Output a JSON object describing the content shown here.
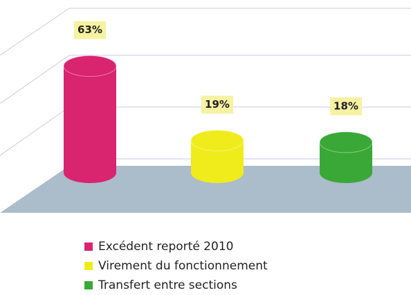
{
  "chart_data": {
    "type": "bar",
    "categories": [
      "Excédent reporté 2010",
      "Virement du fonctionnement",
      "Transfert entre sections"
    ],
    "values": [
      63,
      19,
      18
    ],
    "value_labels": [
      "63%",
      "19%",
      "18%"
    ],
    "colors": [
      "#d9246f",
      "#f0ec1c",
      "#3aa836"
    ]
  }
}
